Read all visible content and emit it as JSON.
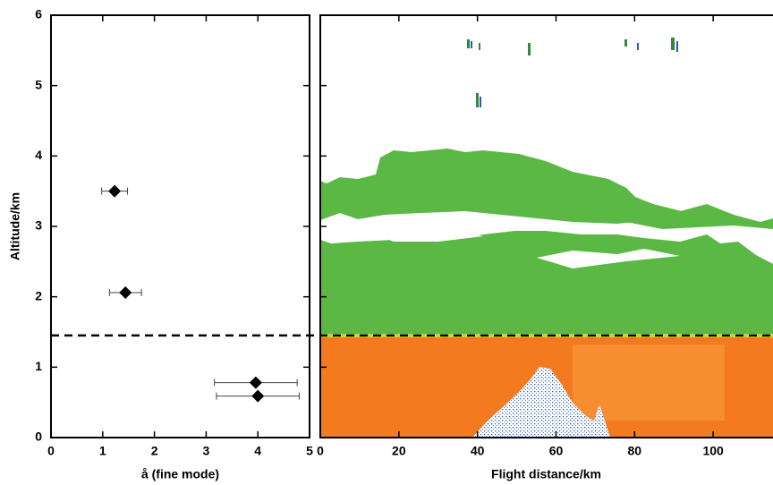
{
  "chart_data": [
    {
      "type": "scatter",
      "xlabel": "å (fine mode)",
      "ylabel": "Altitude/km",
      "x": [
        1.23,
        1.44,
        3.96,
        4.0
      ],
      "values": [
        3.5,
        2.06,
        0.78,
        0.59
      ],
      "xerr": [
        0.25,
        0.31,
        0.8,
        0.8
      ],
      "color": "#000000",
      "xlim": [
        0,
        5
      ],
      "ylim": [
        0,
        6
      ],
      "xticks": [
        0,
        1,
        2,
        3,
        4,
        5
      ],
      "yticks": [
        0,
        1,
        2,
        3,
        4,
        5,
        6
      ],
      "hline": 1.45
    },
    {
      "type": "curtain",
      "xlabel": "Flight distance/km",
      "xlim": [
        0,
        115
      ],
      "ylim": [
        0,
        6
      ],
      "xticks": [
        0,
        20,
        40,
        60,
        80,
        100
      ],
      "yticks": [
        0,
        1,
        2,
        3,
        4,
        5,
        6
      ]
    }
  ]
}
